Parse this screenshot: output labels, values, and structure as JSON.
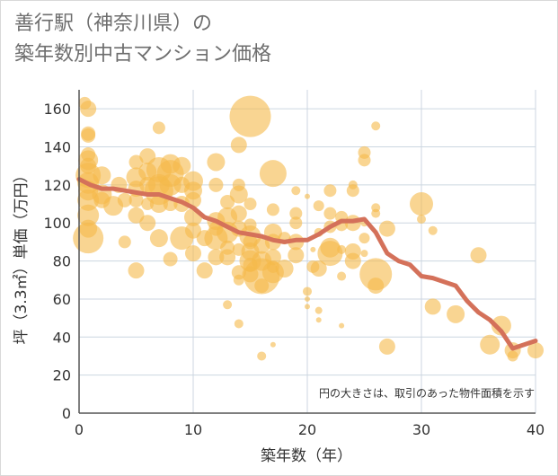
{
  "chart_data": {
    "type": "scatter",
    "title_lines": [
      "善行駅（神奈川県）の",
      "築年数別中古マンション価格"
    ],
    "xlabel": "築年数（年）",
    "ylabel": "坪（3.3㎡）単価（万円）",
    "xlim": [
      0,
      40
    ],
    "ylim": [
      0,
      170
    ],
    "x_ticks": [
      0,
      10,
      20,
      30,
      40
    ],
    "y_ticks": [
      0,
      20,
      40,
      60,
      80,
      100,
      120,
      140,
      160
    ],
    "grid": true,
    "note": "円の大きさは、取引のあった物件面積を示す",
    "colors": {
      "bubble": "#f5b94a",
      "line": "#d4715a",
      "grid": "#ccd6e0",
      "axis": "#555555"
    },
    "series": [
      {
        "type": "bubble",
        "points": [
          [
            0.5,
            163,
            7
          ],
          [
            0.8,
            160,
            9
          ],
          [
            0.8,
            147,
            8
          ],
          [
            0.8,
            146,
            8
          ],
          [
            0.8,
            136,
            8
          ],
          [
            0.8,
            133,
            11
          ],
          [
            0.8,
            130,
            9
          ],
          [
            0.8,
            125,
            14
          ],
          [
            0.8,
            121,
            12
          ],
          [
            0.8,
            117,
            11
          ],
          [
            0.8,
            112,
            12
          ],
          [
            0.8,
            104,
            12
          ],
          [
            0.8,
            97,
            10
          ],
          [
            0.8,
            92,
            17
          ],
          [
            2,
            125,
            10
          ],
          [
            2,
            115,
            11
          ],
          [
            2,
            112,
            9
          ],
          [
            3,
            109,
            11
          ],
          [
            3.5,
            120,
            9
          ],
          [
            4,
            112,
            8
          ],
          [
            4,
            90,
            7
          ],
          [
            5,
            132,
            8
          ],
          [
            5,
            124,
            11
          ],
          [
            5,
            118,
            9
          ],
          [
            5,
            112,
            8
          ],
          [
            5,
            104,
            9
          ],
          [
            5,
            75,
            9
          ],
          [
            6,
            135,
            9
          ],
          [
            6,
            127,
            10
          ],
          [
            6,
            120,
            9
          ],
          [
            6,
            110,
            7
          ],
          [
            6,
            100,
            9
          ],
          [
            7,
            150,
            7
          ],
          [
            7,
            128,
            14
          ],
          [
            7,
            120,
            12
          ],
          [
            7,
            117,
            16
          ],
          [
            7,
            110,
            10
          ],
          [
            7,
            92,
            10
          ],
          [
            8,
            131,
            11
          ],
          [
            8,
            126,
            15
          ],
          [
            8,
            120,
            12
          ],
          [
            8,
            110,
            8
          ],
          [
            8,
            81,
            8
          ],
          [
            9,
            130,
            10
          ],
          [
            9,
            120,
            9
          ],
          [
            9,
            110,
            9
          ],
          [
            9,
            92,
            13
          ],
          [
            10,
            122,
            11
          ],
          [
            10,
            117,
            10
          ],
          [
            10,
            112,
            9
          ],
          [
            10,
            103,
            10
          ],
          [
            10,
            96,
            9
          ],
          [
            10,
            84,
            9
          ],
          [
            11,
            92,
            9
          ],
          [
            11,
            75,
            9
          ],
          [
            12,
            132,
            10
          ],
          [
            12,
            120,
            8
          ],
          [
            12,
            101,
            10
          ],
          [
            12,
            97,
            8
          ],
          [
            12,
            92,
            13
          ],
          [
            12,
            82,
            9
          ],
          [
            13,
            111,
            8
          ],
          [
            13,
            103,
            11
          ],
          [
            13,
            95,
            12
          ],
          [
            13,
            87,
            8
          ],
          [
            13,
            82,
            9
          ],
          [
            13,
            57,
            5
          ],
          [
            14,
            141,
            9
          ],
          [
            14,
            120,
            7
          ],
          [
            14,
            115,
            10
          ],
          [
            14,
            105,
            9
          ],
          [
            14,
            97,
            9
          ],
          [
            14,
            86,
            7
          ],
          [
            14,
            74,
            8
          ],
          [
            14,
            70,
            6
          ],
          [
            14,
            47,
            5
          ],
          [
            15,
            156,
            23
          ],
          [
            15,
            110,
            7
          ],
          [
            15,
            99,
            7
          ],
          [
            15,
            93,
            12
          ],
          [
            15,
            90,
            8
          ],
          [
            15,
            85,
            10
          ],
          [
            15,
            80,
            12
          ],
          [
            15,
            78,
            8
          ],
          [
            15,
            73,
            9
          ],
          [
            16,
            88,
            9
          ],
          [
            16,
            80,
            11
          ],
          [
            16,
            72,
            20
          ],
          [
            16,
            67,
            8
          ],
          [
            16,
            30,
            5
          ],
          [
            17,
            126,
            15
          ],
          [
            17,
            107,
            7
          ],
          [
            17,
            95,
            10
          ],
          [
            17,
            90,
            9
          ],
          [
            17,
            82,
            9
          ],
          [
            17,
            77,
            7
          ],
          [
            17,
            74,
            12
          ],
          [
            17,
            36,
            3
          ],
          [
            18,
            92,
            7
          ],
          [
            18,
            76,
            10
          ],
          [
            19,
            117,
            5
          ],
          [
            19,
            105,
            7
          ],
          [
            19,
            100,
            7
          ],
          [
            19,
            90,
            9
          ],
          [
            19,
            83,
            9
          ],
          [
            20,
            114,
            3
          ],
          [
            20,
            64,
            5
          ],
          [
            20,
            60,
            3
          ],
          [
            20,
            56,
            3
          ],
          [
            20.5,
            86,
            3
          ],
          [
            20.5,
            77,
            7
          ],
          [
            21,
            109,
            6
          ],
          [
            21,
            95,
            5
          ],
          [
            21,
            76,
            9
          ],
          [
            21,
            54,
            4
          ],
          [
            21,
            49,
            3
          ],
          [
            22,
            117,
            7
          ],
          [
            22,
            105,
            7
          ],
          [
            22,
            98,
            7
          ],
          [
            22,
            87,
            11
          ],
          [
            22,
            84,
            14
          ],
          [
            23,
            103,
            7
          ],
          [
            23,
            99,
            7
          ],
          [
            23,
            86,
            5
          ],
          [
            23,
            72,
            5
          ],
          [
            23,
            46,
            3
          ],
          [
            24,
            120,
            5
          ],
          [
            24,
            117,
            7
          ],
          [
            24,
            100,
            9
          ],
          [
            24,
            85,
            9
          ],
          [
            24,
            80,
            9
          ],
          [
            25,
            137,
            7
          ],
          [
            25,
            133,
            7
          ],
          [
            25,
            100,
            4
          ],
          [
            25,
            92,
            6
          ],
          [
            25,
            84,
            4
          ],
          [
            26,
            151,
            5
          ],
          [
            26,
            108,
            5
          ],
          [
            26,
            105,
            5
          ],
          [
            26,
            73,
            18
          ],
          [
            26,
            67,
            9
          ],
          [
            27,
            97,
            9
          ],
          [
            27,
            35,
            9
          ],
          [
            30,
            110,
            13
          ],
          [
            30,
            102,
            5
          ],
          [
            31,
            96,
            5
          ],
          [
            31,
            56,
            9
          ],
          [
            33,
            52,
            10
          ],
          [
            35,
            83,
            9
          ],
          [
            36,
            36,
            11
          ],
          [
            37,
            46,
            11
          ],
          [
            38,
            33,
            9
          ],
          [
            38,
            30,
            6
          ],
          [
            40,
            33,
            9
          ]
        ]
      },
      {
        "type": "line",
        "points": [
          [
            0,
            123
          ],
          [
            1,
            120
          ],
          [
            2,
            118
          ],
          [
            3,
            118
          ],
          [
            4,
            117
          ],
          [
            5,
            116
          ],
          [
            6,
            115
          ],
          [
            7,
            115
          ],
          [
            8,
            113
          ],
          [
            9,
            111
          ],
          [
            10,
            108
          ],
          [
            11,
            103
          ],
          [
            12,
            101
          ],
          [
            13,
            98
          ],
          [
            14,
            95
          ],
          [
            15,
            94
          ],
          [
            16,
            93
          ],
          [
            17,
            91
          ],
          [
            18,
            90
          ],
          [
            19,
            91
          ],
          [
            20,
            91
          ],
          [
            21,
            94
          ],
          [
            22,
            98
          ],
          [
            23,
            101
          ],
          [
            24,
            101
          ],
          [
            25,
            102
          ],
          [
            26,
            95
          ],
          [
            27,
            84
          ],
          [
            28,
            80
          ],
          [
            29,
            78
          ],
          [
            30,
            72
          ],
          [
            31,
            71
          ],
          [
            32,
            69
          ],
          [
            33,
            67
          ],
          [
            34,
            59
          ],
          [
            35,
            53
          ],
          [
            36,
            49
          ],
          [
            37,
            43
          ],
          [
            38,
            34
          ],
          [
            39,
            36
          ],
          [
            40,
            38
          ]
        ]
      }
    ]
  }
}
